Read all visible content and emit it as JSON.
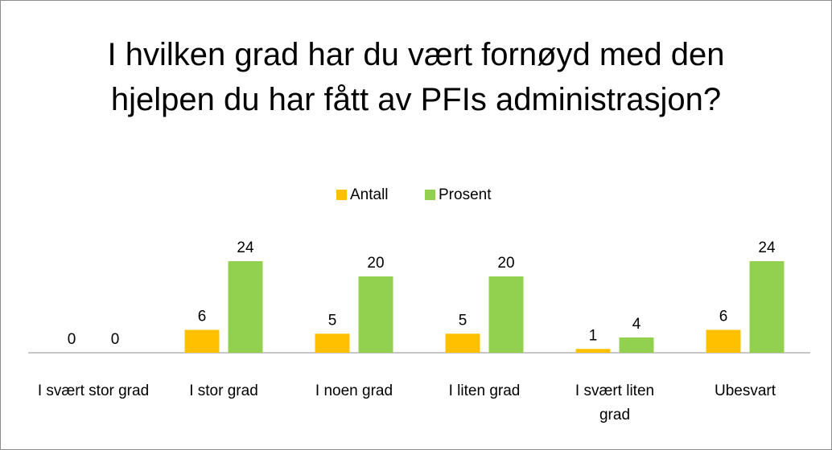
{
  "chart_data": {
    "type": "bar",
    "title": "I hvilken grad har du vært fornøyd med den hjelpen du har fått av PFIs administrasjon?",
    "categories": [
      "I svært stor grad",
      "I stor grad",
      "I noen grad",
      "I liten grad",
      "I svært liten grad",
      "Ubesvart"
    ],
    "series": [
      {
        "name": "Antall",
        "color": "#ffc000",
        "values": [
          0,
          6,
          5,
          5,
          1,
          6
        ]
      },
      {
        "name": "Prosent",
        "color": "#92d050",
        "values": [
          0,
          24,
          20,
          20,
          4,
          24
        ]
      }
    ],
    "ylim": [
      0,
      40
    ],
    "legend": "top"
  }
}
